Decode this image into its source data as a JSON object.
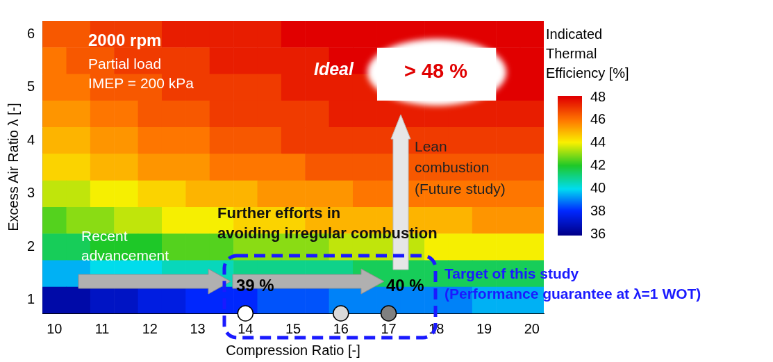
{
  "chart_data": {
    "type": "heatmap",
    "xlabel": "Compression Ratio [-]",
    "ylabel": "Excess Air Ratio λ [-]",
    "clabel": "Indicated Thermal Efficiency [%]",
    "clim": [
      36,
      48
    ],
    "cticks": [
      36,
      38,
      40,
      42,
      44,
      46,
      48
    ],
    "categories": [
      "10",
      null,
      "11",
      null,
      "12",
      null,
      "13",
      null,
      "14",
      null,
      "15",
      null,
      "16",
      null,
      "17",
      null,
      "18",
      null,
      "19",
      null,
      "20"
    ],
    "y_categories": [
      "6",
      null,
      "5",
      null,
      "4",
      null,
      "3",
      null,
      "2",
      null,
      "1"
    ],
    "cells": [
      [
        46.5,
        46.5,
        47,
        47,
        47,
        47.5,
        47.5,
        47.5,
        47.5,
        47.5,
        48,
        48,
        48,
        48,
        48,
        48,
        48,
        48,
        48,
        48,
        48
      ],
      [
        46,
        46.5,
        46.5,
        47,
        47,
        47,
        47,
        47.5,
        47.5,
        47.5,
        47.5,
        47.5,
        48,
        48,
        null,
        null,
        null,
        null,
        null,
        48,
        48
      ],
      [
        46,
        46,
        46.5,
        46.5,
        46.5,
        47,
        47,
        47,
        47,
        47,
        47.5,
        47.5,
        47.5,
        47.5,
        null,
        null,
        null,
        null,
        null,
        48,
        48
      ],
      [
        45.5,
        45.5,
        46,
        46,
        46.5,
        46.5,
        46.5,
        47,
        47,
        47,
        47,
        47,
        47.5,
        47.5,
        47.5,
        47.5,
        47.5,
        47.5,
        47.5,
        47.5,
        47.5
      ],
      [
        45,
        45,
        45.5,
        45.5,
        46,
        46,
        46,
        46.5,
        46.5,
        46.5,
        47,
        47,
        47,
        47,
        47,
        47,
        47,
        47,
        47,
        47,
        47
      ],
      [
        44.5,
        44.5,
        45,
        45,
        45.5,
        45.5,
        45.5,
        46,
        46,
        46,
        46,
        46.5,
        46.5,
        46.5,
        46.5,
        46.5,
        46.5,
        46.5,
        46.5,
        46.5,
        46.5
      ],
      [
        43.5,
        43.5,
        44,
        44,
        44.5,
        44.5,
        45,
        45,
        45,
        45.5,
        45.5,
        45.5,
        45.5,
        46,
        46,
        46,
        46,
        46,
        46,
        46,
        46
      ],
      [
        42.5,
        43,
        43,
        43.5,
        43.5,
        44,
        44,
        44,
        44.5,
        44.5,
        44.5,
        45,
        45,
        45,
        45,
        45,
        45,
        45,
        45.5,
        45.5,
        45.5
      ],
      [
        41.5,
        41.5,
        42,
        42,
        42,
        42.5,
        42.5,
        42.5,
        43,
        43,
        43,
        43,
        43.5,
        43.5,
        43.5,
        43.5,
        44,
        44,
        44,
        44,
        44
      ],
      [
        39.5,
        39.5,
        40,
        40,
        40,
        40.5,
        40.5,
        40.5,
        41,
        41,
        41,
        41,
        41,
        41.5,
        41.5,
        41.5,
        41.5,
        41.5,
        41.5,
        41.5,
        41.5
      ],
      [
        36.5,
        36.5,
        37,
        37,
        37.5,
        37.5,
        38,
        38,
        38,
        38.5,
        38.5,
        38.5,
        39,
        39,
        39,
        39,
        39,
        39,
        39.5,
        39.5,
        39.5
      ]
    ],
    "annotations": [
      "2000 rpm",
      "Partial load",
      "IMEP = 200 kPa",
      "Ideal",
      "> 48 %",
      "Lean",
      "combustion",
      "(Future study)",
      "Further efforts in",
      "avoiding irregular combustion",
      "Recent",
      "advancement",
      "39 %",
      "40 %",
      "Target of this study",
      "(Performance guarantee at λ=1 WOT)"
    ]
  }
}
